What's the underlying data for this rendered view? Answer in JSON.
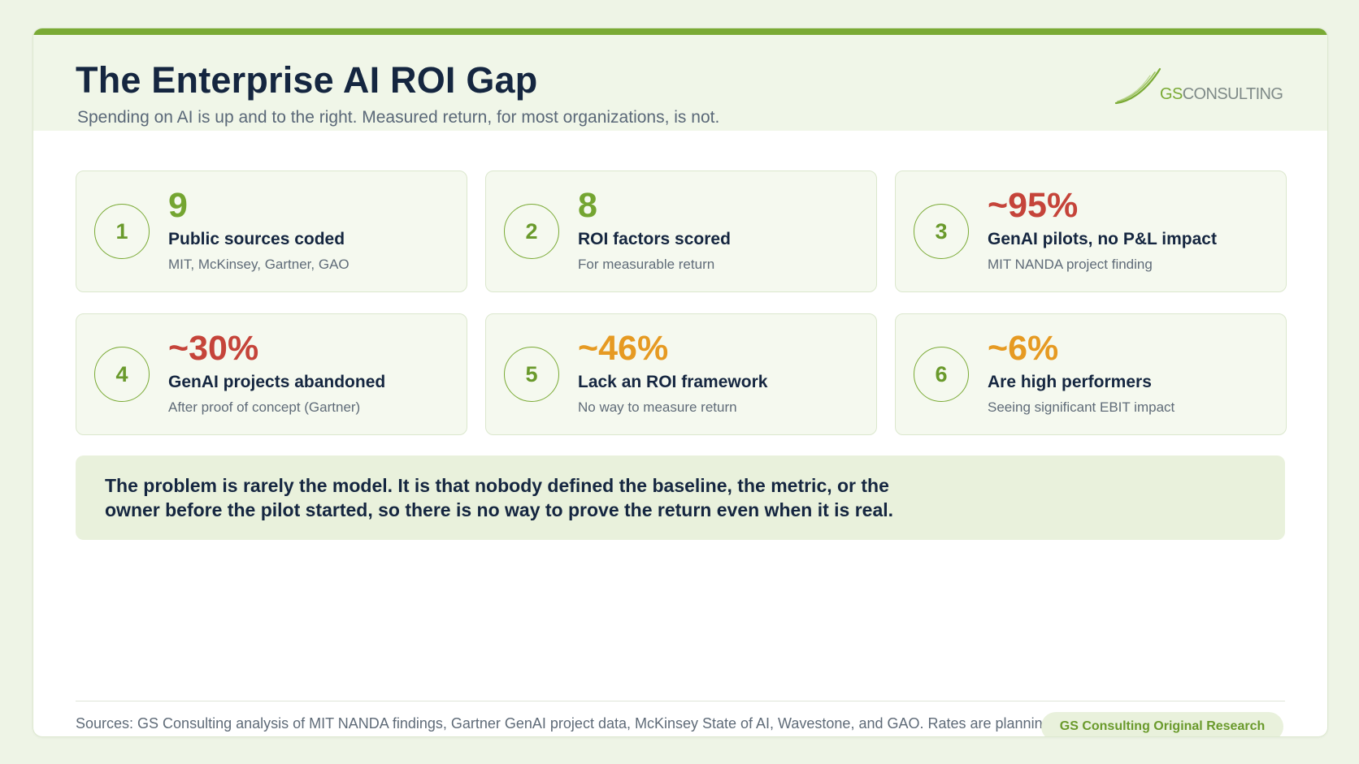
{
  "header": {
    "title": "The Enterprise AI ROI Gap",
    "subtitle": "Spending on AI is up and to the right. Measured return, for most organizations, is not.",
    "logo": {
      "gs": "GS",
      "rest": "CONSULTING"
    }
  },
  "cards": [
    {
      "number": "1",
      "stat": "9",
      "label": "Public sources coded",
      "note": "MIT, McKinsey, Gartner, GAO"
    },
    {
      "number": "2",
      "stat": "8",
      "label": "ROI factors scored",
      "note": "For measurable return"
    },
    {
      "number": "3",
      "stat": "~95%",
      "label": "GenAI pilots, no P&L impact",
      "note": "MIT NANDA project finding"
    },
    {
      "number": "4",
      "stat": "~30%",
      "label": "GenAI projects abandoned",
      "note": "After proof of concept (Gartner)"
    },
    {
      "number": "5",
      "stat": "~46%",
      "label": "Lack an ROI framework",
      "note": "No way to measure return"
    },
    {
      "number": "6",
      "stat": "~6%",
      "label": "Are high performers",
      "note": "Seeing significant EBIT impact"
    }
  ],
  "colors": {
    "accent": "#7aaa35",
    "navy": "#152640",
    "stat_green": "#74a531",
    "stat_red": "#c5443a",
    "stat_orange": "#e69a22"
  },
  "callout": {
    "text": "The problem is rarely the model. It is that nobody defined the baseline, the metric, or the owner before the pilot started, so there is no way to prove the return even when it is real."
  },
  "footer": {
    "sources": "Sources: GS Consulting analysis of MIT NANDA findings, Gartner GenAI project data, McKinsey State of AI, Wavestone, and GAO. Rates are planning estimates.",
    "badge": "GS Consulting Original Research"
  }
}
